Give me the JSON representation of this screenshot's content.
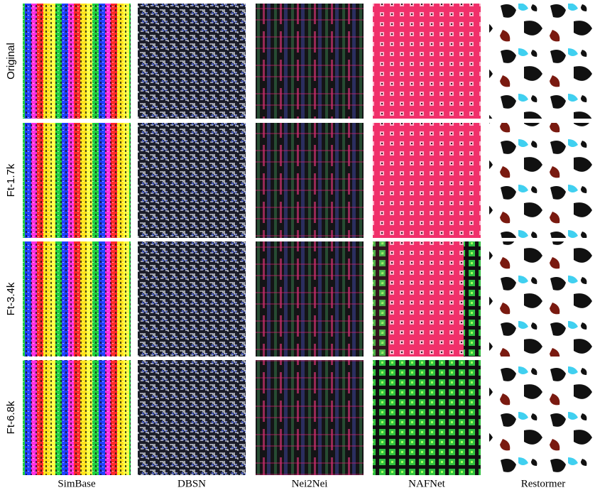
{
  "figure": {
    "row_labels": [
      "Original",
      "Ft-1.7k",
      "Ft-3.4k",
      "Ft-6.8k"
    ],
    "column_labels": [
      "SimBase",
      "DBSN",
      "Nei2Nei",
      "NAFNet",
      "Restormer"
    ]
  }
}
